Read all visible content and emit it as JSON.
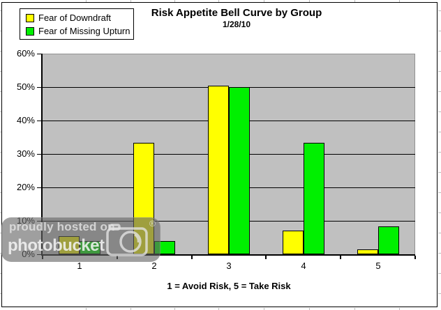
{
  "chart_data": {
    "type": "bar",
    "title": "Risk Appetite Bell Curve by Group",
    "subtitle": "1/28/10",
    "xlabel": "1 = Avoid Risk, 5 = Take Risk",
    "ylabel": "",
    "categories": [
      "1",
      "2",
      "3",
      "4",
      "5"
    ],
    "series": [
      {
        "name": "Fear of Downdraft",
        "color": "#FFFF00",
        "values": [
          5.5,
          33.3,
          50.5,
          7.0,
          1.5
        ]
      },
      {
        "name": "Fear of Missing Upturn",
        "color": "#00F000",
        "values": [
          4.0,
          4.0,
          50.0,
          33.3,
          8.3
        ]
      }
    ],
    "ylim": [
      0,
      60
    ],
    "ytick_step": 10,
    "ytick_suffix": "%",
    "grid": true,
    "legend_position": "top-left",
    "plot_background": "#C0C0C0",
    "bar_outline": "#000000"
  },
  "watermark": {
    "line1": "proudly hosted on",
    "line2": "photobucket",
    "registered": "®"
  }
}
